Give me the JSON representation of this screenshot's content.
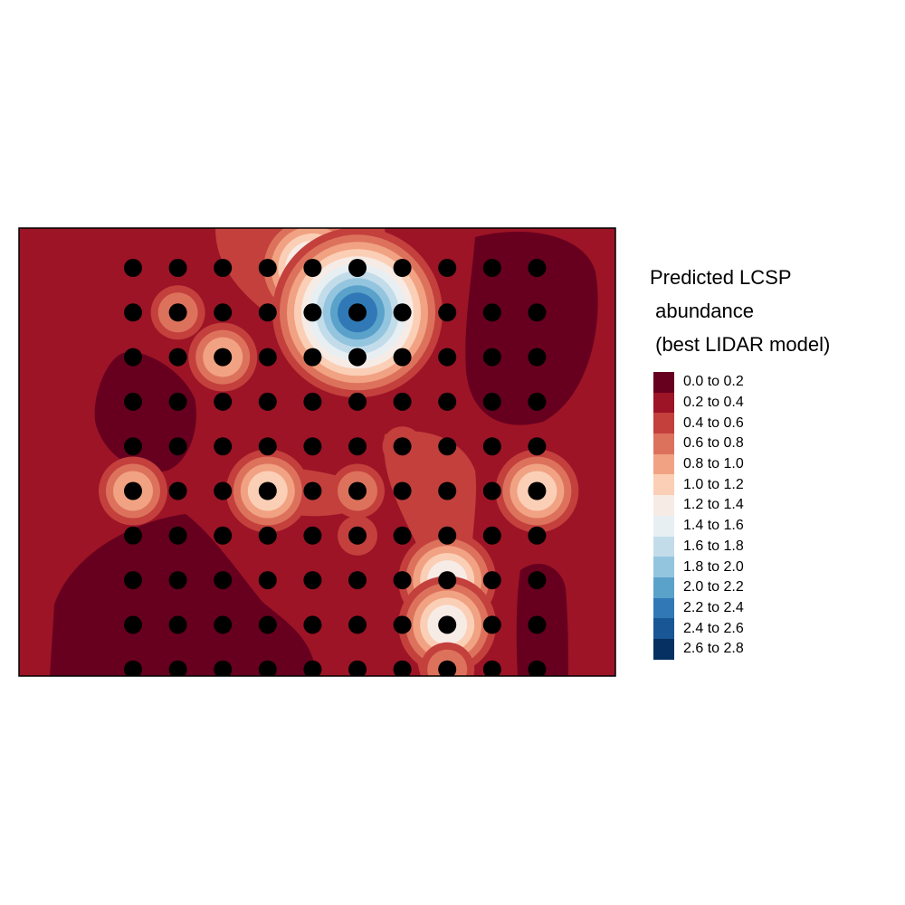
{
  "legend": {
    "title_lines": [
      "Predicted LCSP",
      " abundance",
      " (best LIDAR model)"
    ],
    "classes": [
      {
        "label": "0.0 to 0.2",
        "color": "#67001f"
      },
      {
        "label": "0.2 to 0.4",
        "color": "#9d1426"
      },
      {
        "label": "0.4 to 0.6",
        "color": "#c3403d"
      },
      {
        "label": "0.6 to 0.8",
        "color": "#dd725c"
      },
      {
        "label": "0.8 to 1.0",
        "color": "#f1a283"
      },
      {
        "label": "1.0 to 1.2",
        "color": "#fbcfb6"
      },
      {
        "label": "1.2 to 1.4",
        "color": "#f7ebe6"
      },
      {
        "label": "1.4 to 1.6",
        "color": "#e7eff3"
      },
      {
        "label": "1.6 to 1.8",
        "color": "#c3dcea"
      },
      {
        "label": "1.8 to 2.0",
        "color": "#94c5df"
      },
      {
        "label": "2.0 to 2.2",
        "color": "#5ba2cb"
      },
      {
        "label": "2.2 to 2.4",
        "color": "#3079b6"
      },
      {
        "label": "2.4 to 2.6",
        "color": "#195696"
      },
      {
        "label": "2.6 to 2.8",
        "color": "#053061"
      }
    ]
  },
  "map": {
    "background_color": "#9d1426",
    "point_color": "#000000",
    "grid": {
      "cols": 10,
      "rows": 10
    },
    "hotspots": [
      {
        "col": 4,
        "row": 0,
        "level": 1.5
      },
      {
        "col": 5,
        "row": 1,
        "level": 2.4
      },
      {
        "col": 7,
        "row": 7,
        "level": 1.3
      },
      {
        "col": 7,
        "row": 8,
        "level": 1.3
      },
      {
        "col": 3,
        "row": 5,
        "level": 1.1
      },
      {
        "col": 9,
        "row": 5,
        "level": 1.1
      },
      {
        "col": 2,
        "row": 2,
        "level": 0.9
      },
      {
        "col": 0,
        "row": 5,
        "level": 0.9
      },
      {
        "col": 1,
        "row": 1,
        "level": 0.7
      },
      {
        "col": 7,
        "row": 9,
        "level": 0.7
      },
      {
        "col": 5,
        "row": 5,
        "level": 0.7
      },
      {
        "col": 5,
        "row": 6,
        "level": 0.5
      },
      {
        "col": 6,
        "row": 4,
        "level": 0.5
      }
    ]
  }
}
